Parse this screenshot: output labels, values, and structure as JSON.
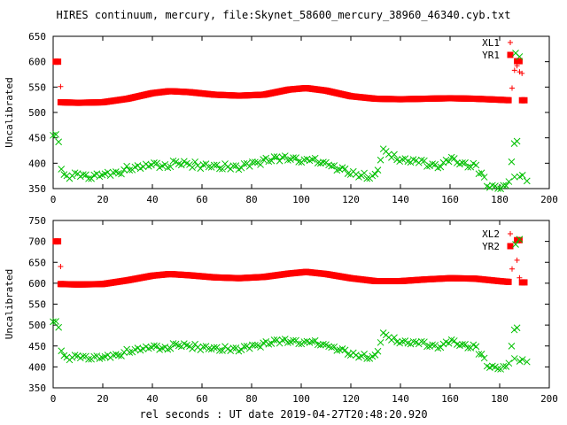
{
  "title": "HIRES continuum, mercury, file:Skynet_58600_mercury_38960_46340.cyb.txt",
  "xlabel": "rel seconds : UT date 2019-04-27T20:48:20.920",
  "colors": {
    "red": "#ff0000",
    "green": "#00c000"
  },
  "chart_data": [
    {
      "type": "scatter",
      "ylabel": "Uncalibrated",
      "xlim": [
        0,
        200
      ],
      "ylim": [
        350,
        650
      ],
      "xticks": [
        0,
        20,
        40,
        60,
        80,
        100,
        120,
        140,
        160,
        180,
        200
      ],
      "yticks": [
        350,
        400,
        450,
        500,
        550,
        600,
        650
      ],
      "legend": "top-right",
      "series": [
        {
          "name": "XL1",
          "marker": "plus",
          "color": "#ff0000",
          "points": [
            [
              3,
              551
            ],
            [
              185,
              548
            ],
            [
              186,
              583
            ],
            [
              187,
              592
            ],
            [
              188,
              580
            ],
            [
              189,
              577
            ]
          ]
        },
        {
          "name": "YR1",
          "marker": "square",
          "color": "#ff0000",
          "points": [
            [
              1,
              600
            ],
            [
              2,
              600
            ],
            [
              187,
              601
            ],
            [
              188,
              601
            ],
            [
              189,
              524
            ],
            [
              190,
              524
            ]
          ]
        },
        {
          "name": "XL1",
          "marker": "dense-band",
          "color": "#ff0000",
          "x": [
            3,
            10,
            20,
            30,
            40,
            47,
            55,
            65,
            75,
            85,
            95,
            102,
            110,
            120,
            130,
            140,
            150,
            160,
            170,
            180,
            184
          ],
          "y": [
            520,
            519,
            520,
            527,
            538,
            542,
            540,
            535,
            533,
            535,
            545,
            548,
            543,
            532,
            527,
            526,
            527,
            528,
            527,
            525,
            524
          ]
        },
        {
          "name": "YR1",
          "marker": "cross",
          "color": "#00c000",
          "x": [
            0,
            1,
            2,
            3,
            4,
            6,
            10,
            15,
            20,
            25,
            30,
            35,
            40,
            45,
            50,
            55,
            60,
            65,
            70,
            75,
            80,
            85,
            90,
            95,
            100,
            105,
            110,
            115,
            120,
            125,
            130,
            133,
            135,
            140,
            145,
            150,
            155,
            160,
            165,
            170,
            175,
            178,
            180,
            182,
            184,
            186,
            187,
            188,
            190
          ],
          "y": [
            455,
            453,
            455,
            400,
            375,
            375,
            376,
            371,
            378,
            379,
            390,
            390,
            398,
            396,
            400,
            398,
            395,
            393,
            393,
            393,
            398,
            405,
            410,
            408,
            405,
            407,
            400,
            391,
            380,
            375,
            373,
            425,
            420,
            405,
            404,
            400,
            393,
            407,
            398,
            395,
            358,
            355,
            355,
            353,
            370,
            440,
            445,
            380,
            368
          ]
        },
        {
          "name": "XL1",
          "marker": "cross-isolated",
          "color": "#00c000",
          "points": [
            [
              188,
              610
            ],
            [
              186,
              373
            ],
            [
              191,
              365
            ]
          ]
        }
      ]
    },
    {
      "type": "scatter",
      "ylabel": "Uncalibrated",
      "xlim": [
        0,
        200
      ],
      "ylim": [
        350,
        750
      ],
      "xticks": [
        0,
        20,
        40,
        60,
        80,
        100,
        120,
        140,
        160,
        180,
        200
      ],
      "yticks": [
        350,
        400,
        450,
        500,
        550,
        600,
        650,
        700,
        750
      ],
      "legend": "top-right",
      "series": [
        {
          "name": "XL2",
          "marker": "plus",
          "color": "#ff0000",
          "points": [
            [
              3,
              640
            ],
            [
              185,
              634
            ],
            [
              187,
              655
            ],
            [
              188,
              613
            ]
          ]
        },
        {
          "name": "YR2",
          "marker": "square",
          "color": "#ff0000",
          "points": [
            [
              1,
              700
            ],
            [
              2,
              700
            ],
            [
              187,
              703
            ],
            [
              188,
              703
            ],
            [
              189,
              602
            ],
            [
              190,
              602
            ]
          ]
        },
        {
          "name": "XL2",
          "marker": "dense-band",
          "color": "#ff0000",
          "x": [
            3,
            10,
            20,
            30,
            40,
            47,
            55,
            65,
            75,
            85,
            95,
            102,
            110,
            120,
            130,
            140,
            150,
            160,
            170,
            180,
            184
          ],
          "y": [
            598,
            597,
            598,
            607,
            618,
            622,
            619,
            614,
            612,
            615,
            623,
            627,
            622,
            612,
            605,
            605,
            609,
            612,
            611,
            605,
            603
          ]
        },
        {
          "name": "YR2",
          "marker": "cross",
          "color": "#00c000",
          "x": [
            0,
            1,
            2,
            3,
            4,
            6,
            10,
            15,
            20,
            25,
            30,
            35,
            40,
            45,
            50,
            55,
            60,
            65,
            70,
            75,
            80,
            85,
            90,
            95,
            100,
            105,
            110,
            115,
            120,
            125,
            130,
            133,
            135,
            140,
            145,
            150,
            155,
            160,
            165,
            170,
            175,
            178,
            180,
            182,
            184,
            186,
            187,
            188,
            190
          ],
          "y": [
            508,
            505,
            508,
            450,
            425,
            422,
            423,
            420,
            423,
            426,
            438,
            440,
            448,
            446,
            452,
            450,
            446,
            443,
            443,
            443,
            448,
            455,
            462,
            460,
            458,
            460,
            452,
            444,
            430,
            425,
            423,
            478,
            473,
            458,
            457,
            455,
            447,
            460,
            451,
            448,
            405,
            400,
            400,
            398,
            415,
            490,
            495,
            420,
            410
          ]
        },
        {
          "name": "XL2",
          "marker": "cross-isolated",
          "color": "#00c000",
          "points": [
            [
              188,
              705
            ],
            [
              186,
              420
            ],
            [
              191,
              412
            ]
          ]
        }
      ]
    }
  ]
}
